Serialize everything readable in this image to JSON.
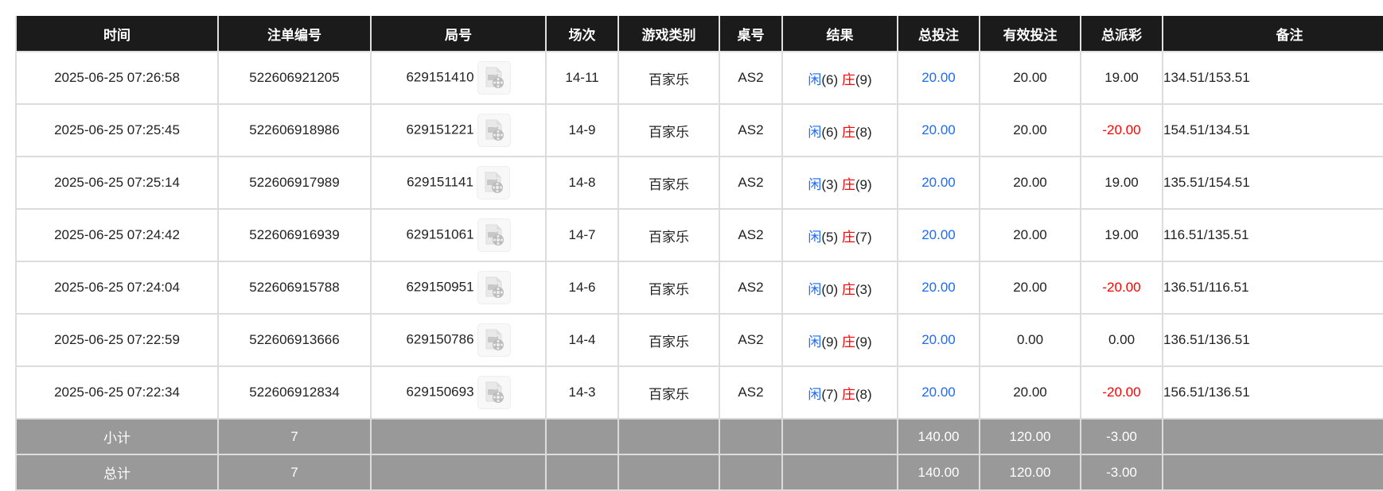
{
  "colors": {
    "header_bg": "#1b1b1b",
    "summary_bg": "#999999",
    "blue": "#1a6bff",
    "red": "#ff0000"
  },
  "headers": [
    "时间",
    "注单编号",
    "局号",
    "场次",
    "游戏类别",
    "桌号",
    "结果",
    "总投注",
    "有效投注",
    "总派彩",
    "备注"
  ],
  "rows": [
    {
      "time": "2025-06-25 07:26:58",
      "bet_id": "522606921205",
      "round": "629151410",
      "session": "14-11",
      "game": "百家乐",
      "table": "AS2",
      "player_label": "闲",
      "player": "(6)",
      "banker_label": "庄",
      "banker": "(9)",
      "total_bet": "20.00",
      "valid_bet": "20.00",
      "payout": "19.00",
      "payout_negative": false,
      "remark": "134.51/153.51"
    },
    {
      "time": "2025-06-25 07:25:45",
      "bet_id": "522606918986",
      "round": "629151221",
      "session": "14-9",
      "game": "百家乐",
      "table": "AS2",
      "player_label": "闲",
      "player": "(6)",
      "banker_label": "庄",
      "banker": "(8)",
      "total_bet": "20.00",
      "valid_bet": "20.00",
      "payout": "-20.00",
      "payout_negative": true,
      "remark": "154.51/134.51"
    },
    {
      "time": "2025-06-25 07:25:14",
      "bet_id": "522606917989",
      "round": "629151141",
      "session": "14-8",
      "game": "百家乐",
      "table": "AS2",
      "player_label": "闲",
      "player": "(3)",
      "banker_label": "庄",
      "banker": "(9)",
      "total_bet": "20.00",
      "valid_bet": "20.00",
      "payout": "19.00",
      "payout_negative": false,
      "remark": "135.51/154.51"
    },
    {
      "time": "2025-06-25 07:24:42",
      "bet_id": "522606916939",
      "round": "629151061",
      "session": "14-7",
      "game": "百家乐",
      "table": "AS2",
      "player_label": "闲",
      "player": "(5)",
      "banker_label": "庄",
      "banker": "(7)",
      "total_bet": "20.00",
      "valid_bet": "20.00",
      "payout": "19.00",
      "payout_negative": false,
      "remark": "116.51/135.51"
    },
    {
      "time": "2025-06-25 07:24:04",
      "bet_id": "522606915788",
      "round": "629150951",
      "session": "14-6",
      "game": "百家乐",
      "table": "AS2",
      "player_label": "闲",
      "player": "(0)",
      "banker_label": "庄",
      "banker": "(3)",
      "total_bet": "20.00",
      "valid_bet": "20.00",
      "payout": "-20.00",
      "payout_negative": true,
      "remark": "136.51/116.51"
    },
    {
      "time": "2025-06-25 07:22:59",
      "bet_id": "522606913666",
      "round": "629150786",
      "session": "14-4",
      "game": "百家乐",
      "table": "AS2",
      "player_label": "闲",
      "player": "(9)",
      "banker_label": "庄",
      "banker": "(9)",
      "total_bet": "20.00",
      "valid_bet": "0.00",
      "payout": "0.00",
      "payout_negative": false,
      "remark": "136.51/136.51"
    },
    {
      "time": "2025-06-25 07:22:34",
      "bet_id": "522606912834",
      "round": "629150693",
      "session": "14-3",
      "game": "百家乐",
      "table": "AS2",
      "player_label": "闲",
      "player": "(7)",
      "banker_label": "庄",
      "banker": "(8)",
      "total_bet": "20.00",
      "valid_bet": "20.00",
      "payout": "-20.00",
      "payout_negative": true,
      "remark": "156.51/136.51"
    }
  ],
  "summary": [
    {
      "label": "小计",
      "count": "7",
      "total_bet": "140.00",
      "valid_bet": "120.00",
      "payout": "-3.00"
    },
    {
      "label": "总计",
      "count": "7",
      "total_bet": "140.00",
      "valid_bet": "120.00",
      "payout": "-3.00"
    }
  ]
}
